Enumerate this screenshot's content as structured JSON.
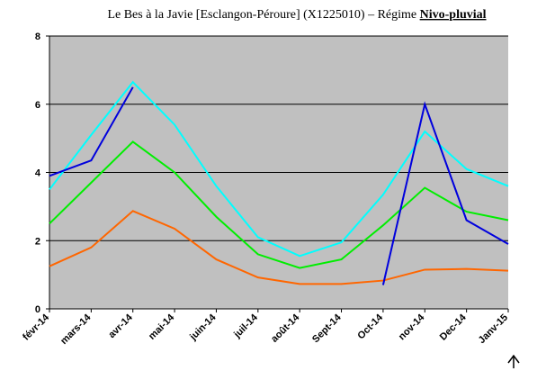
{
  "chart_data": {
    "type": "line",
    "title": "Le Bes à la Javie [Esclangon-Péroure] (X1225010) – Régime ",
    "title_emphasis": "Nivo-pluvial",
    "categories": [
      "févr-14",
      "mars-14",
      "avr-14",
      "mai-14",
      "juin-14",
      "juil-14",
      "août-14",
      "Sept-14",
      "Oct-14",
      "nov-14",
      "Dec-14",
      "Janv-15"
    ],
    "series": [
      {
        "color": "#ff6600",
        "values": [
          1.25,
          1.8,
          2.87,
          2.35,
          1.45,
          0.92,
          0.73,
          0.73,
          0.83,
          1.15,
          1.17,
          1.12
        ]
      },
      {
        "color": "#00ee00",
        "values": [
          2.5,
          3.7,
          4.9,
          4.0,
          2.7,
          1.6,
          1.2,
          1.45,
          2.45,
          3.55,
          2.85,
          2.6
        ]
      },
      {
        "color": "#00ffff",
        "values": [
          3.5,
          5.1,
          6.65,
          5.4,
          3.6,
          2.1,
          1.55,
          1.95,
          3.35,
          5.2,
          4.1,
          3.6
        ]
      },
      {
        "color": "#0000dd",
        "values": [
          3.9,
          4.35,
          6.5,
          null,
          null,
          null,
          null,
          null,
          0.7,
          6.0,
          2.6,
          1.9
        ]
      }
    ],
    "ylim": [
      0,
      8
    ],
    "yticks": [
      0,
      2,
      4,
      6,
      8
    ],
    "grid": true,
    "background": "#c0c0c0"
  }
}
